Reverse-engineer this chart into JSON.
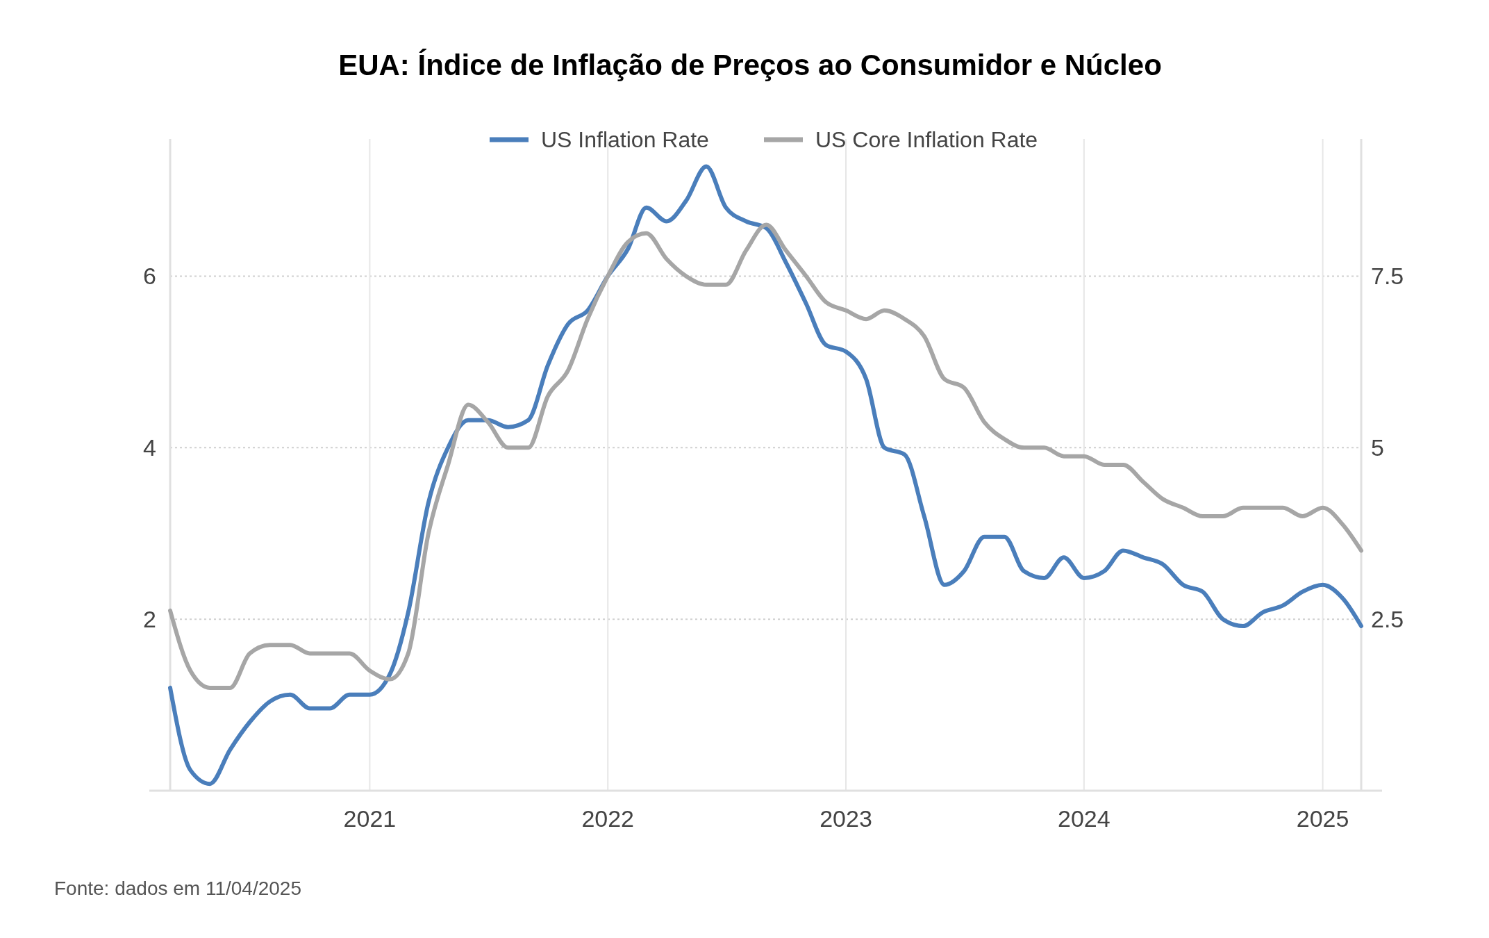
{
  "chart_data": {
    "type": "line",
    "title": "EUA: Índice de Inflação de Preços ao Consumidor e Núcleo",
    "x": [
      "2020-03",
      "2020-04",
      "2020-05",
      "2020-06",
      "2020-07",
      "2020-08",
      "2020-09",
      "2020-10",
      "2020-11",
      "2020-12",
      "2021-01",
      "2021-02",
      "2021-03",
      "2021-04",
      "2021-05",
      "2021-06",
      "2021-07",
      "2021-08",
      "2021-09",
      "2021-10",
      "2021-11",
      "2021-12",
      "2022-01",
      "2022-02",
      "2022-03",
      "2022-04",
      "2022-05",
      "2022-06",
      "2022-07",
      "2022-08",
      "2022-09",
      "2022-10",
      "2022-11",
      "2022-12",
      "2023-01",
      "2023-02",
      "2023-03",
      "2023-04",
      "2023-05",
      "2023-06",
      "2023-07",
      "2023-08",
      "2023-09",
      "2023-10",
      "2023-11",
      "2023-12",
      "2024-01",
      "2024-02",
      "2024-03",
      "2024-04",
      "2024-05",
      "2024-06",
      "2024-07",
      "2024-08",
      "2024-09",
      "2024-10",
      "2024-11",
      "2024-12",
      "2025-01",
      "2025-02",
      "2025-03"
    ],
    "series": [
      {
        "name": "US Inflation Rate",
        "color": "#4a7ebb",
        "axis": "y2",
        "values": [
          1.5,
          0.3,
          0.1,
          0.6,
          1.0,
          1.3,
          1.4,
          1.2,
          1.2,
          1.4,
          1.4,
          1.7,
          2.6,
          4.2,
          5.0,
          5.4,
          5.4,
          5.3,
          5.4,
          6.2,
          6.8,
          7.0,
          7.5,
          7.9,
          8.5,
          8.3,
          8.6,
          9.1,
          8.5,
          8.3,
          8.2,
          7.7,
          7.1,
          6.5,
          6.4,
          6.0,
          5.0,
          4.9,
          4.0,
          3.0,
          3.2,
          3.7,
          3.7,
          3.2,
          3.1,
          3.4,
          3.1,
          3.2,
          3.5,
          3.4,
          3.3,
          3.0,
          2.9,
          2.5,
          2.4,
          2.6,
          2.7,
          2.9,
          3.0,
          2.8,
          2.4
        ]
      },
      {
        "name": "US Core Inflation Rate",
        "color": "#a6a6a6",
        "values": [
          2.1,
          1.4,
          1.2,
          1.2,
          1.6,
          1.7,
          1.7,
          1.6,
          1.6,
          1.6,
          1.4,
          1.3,
          1.6,
          3.0,
          3.8,
          4.5,
          4.3,
          4.0,
          4.0,
          4.6,
          4.9,
          5.5,
          6.0,
          6.4,
          6.5,
          6.2,
          6.0,
          5.9,
          5.9,
          6.3,
          6.6,
          6.3,
          6.0,
          5.7,
          5.6,
          5.5,
          5.6,
          5.5,
          5.3,
          4.8,
          4.7,
          4.3,
          4.1,
          4.0,
          4.0,
          3.9,
          3.9,
          3.8,
          3.8,
          3.6,
          3.4,
          3.3,
          3.2,
          3.2,
          3.3,
          3.3,
          3.3,
          3.2,
          3.3,
          3.1,
          2.8
        ]
      }
    ],
    "xlim": [
      "2020-03",
      "2025-03"
    ],
    "xticks": [
      {
        "value": "2021-01",
        "label": "2021"
      },
      {
        "value": "2022-01",
        "label": "2022"
      },
      {
        "value": "2023-01",
        "label": "2023"
      },
      {
        "value": "2024-01",
        "label": "2024"
      },
      {
        "value": "2025-01",
        "label": "2025"
      }
    ],
    "ylim": [
      0,
      7.6
    ],
    "yticks": [
      2,
      4,
      6
    ],
    "y2lim": [
      0,
      9.5
    ],
    "y2ticks": [
      2.5,
      5,
      7.5
    ],
    "grid": true,
    "legend": "top",
    "line_style": "solid",
    "annotations": [
      "Fonte: dados em 11/04/2025"
    ]
  }
}
